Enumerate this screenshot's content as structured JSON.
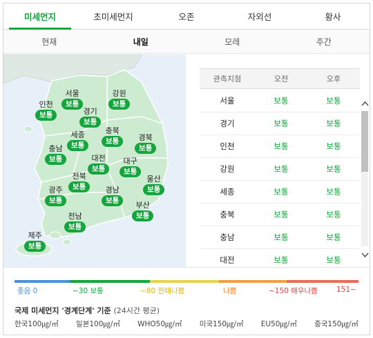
{
  "top_tabs": [
    "미세먼지",
    "초미세먼지",
    "오존",
    "자외선",
    "황사"
  ],
  "active_top_tab": "미세먼지",
  "sub_tabs": [
    "현재",
    "내일",
    "모레",
    "주간"
  ],
  "active_sub_tab": "내일",
  "map": {
    "regions": [
      {
        "name": "서울",
        "status": "보통"
      },
      {
        "name": "강원",
        "status": "보통"
      },
      {
        "name": "인천",
        "status": "보통"
      },
      {
        "name": "경기",
        "status": "보통"
      },
      {
        "name": "세종",
        "status": "보통"
      },
      {
        "name": "충북",
        "status": "보통"
      },
      {
        "name": "경북",
        "status": "보통"
      },
      {
        "name": "충남",
        "status": "보통"
      },
      {
        "name": "대전",
        "status": "보통"
      },
      {
        "name": "대구",
        "status": "보통"
      },
      {
        "name": "전북",
        "status": "보통"
      },
      {
        "name": "울산",
        "status": "보통"
      },
      {
        "name": "광주",
        "status": "보통"
      },
      {
        "name": "경남",
        "status": "보통"
      },
      {
        "name": "부산",
        "status": "보통"
      },
      {
        "name": "전남",
        "status": "보통"
      },
      {
        "name": "제주",
        "status": "보통"
      }
    ]
  },
  "table": {
    "headers": [
      "관측지점",
      "오전",
      "오후"
    ],
    "rows": [
      [
        "서울",
        "보통",
        "보통"
      ],
      [
        "경기",
        "보통",
        "보통"
      ],
      [
        "인천",
        "보통",
        "보통"
      ],
      [
        "강원",
        "보통",
        "보통"
      ],
      [
        "세종",
        "보통",
        "보통"
      ],
      [
        "충북",
        "보통",
        "보통"
      ],
      [
        "충남",
        "보통",
        "보통"
      ],
      [
        "대전",
        "보통",
        "보통"
      ]
    ]
  },
  "scroll": {
    "up_icon": "chevron-up-icon",
    "down_icon": "chevron-down-icon"
  },
  "legend": {
    "labels": [
      {
        "text": "좋음 0",
        "color": "#4a90d9"
      },
      {
        "text": "~30 보통",
        "color": "#14a53c"
      },
      {
        "text": "~80 한때나쁨",
        "color": "#e0b400"
      },
      {
        "text": "나쁨",
        "color": "#f08030"
      },
      {
        "text": "~150 매우나쁨",
        "color": "#e04040"
      },
      {
        "text": "151~",
        "color": "#e04040"
      }
    ],
    "segment_colors": [
      "#4a90d9",
      "#14a53c",
      "#e6d34a",
      "#f0a040",
      "#e86a5a"
    ],
    "title": "국제 미세먼지 '경계단계' 기준",
    "title_sub": "(24시간 평균)",
    "standards": [
      "한국100㎍/㎥",
      "일본100㎍/㎥",
      "WHO50㎍/㎥",
      "미국150㎍/㎥",
      "EU50㎍/㎥",
      "중국150㎍/㎥"
    ]
  },
  "colors": {
    "accent": "#14a53c",
    "map_bg": "#e7f0f8",
    "land": "#cdebd0"
  }
}
